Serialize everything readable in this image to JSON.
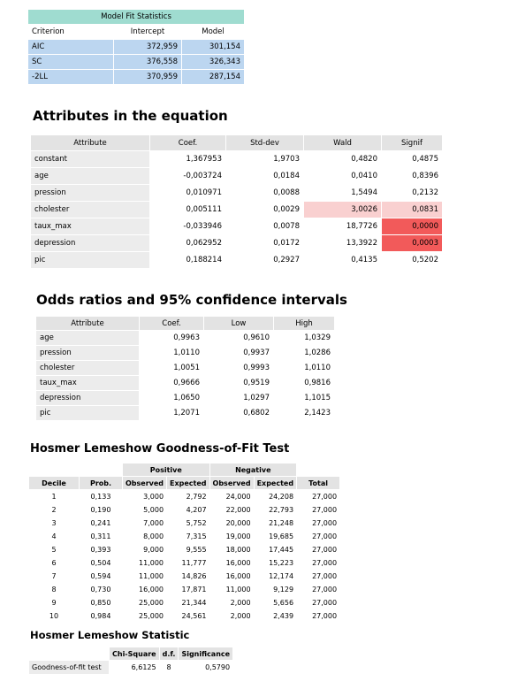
{
  "model_fit": {
    "title": "Model Fit Statistics",
    "headers": [
      "Criterion",
      "Intercept",
      "Model"
    ],
    "rows": [
      [
        "AIC",
        "372,959",
        "301,154"
      ],
      [
        "SC",
        "376,558",
        "326,343"
      ],
      [
        "-2LL",
        "370,959",
        "287,154"
      ]
    ]
  },
  "attributes": {
    "heading": "Attributes in the equation",
    "headers": [
      "Attribute",
      "Coef.",
      "Std-dev",
      "Wald",
      "Signif"
    ],
    "rows": [
      [
        "constant",
        "1,367953",
        "1,9703",
        "0,4820",
        "0,4875"
      ],
      [
        "age",
        "-0,003724",
        "0,0184",
        "0,0410",
        "0,8396"
      ],
      [
        "pression",
        "0,010971",
        "0,0088",
        "1,5494",
        "0,2132"
      ],
      [
        "cholester",
        "0,005111",
        "0,0029",
        "3,0026",
        "0,0831"
      ],
      [
        "taux_max",
        "-0,033946",
        "0,0078",
        "18,7726",
        "0,0000"
      ],
      [
        "depression",
        "0,062952",
        "0,0172",
        "13,3922",
        "0,0003"
      ],
      [
        "pic",
        "0,188214",
        "0,2927",
        "0,4135",
        "0,5202"
      ]
    ],
    "highlight_colors": {
      "light": "#f9d0d0",
      "strong": "#f25a5a"
    }
  },
  "odds": {
    "heading": "Odds ratios and 95% confidence intervals",
    "headers": [
      "Attribute",
      "Coef.",
      "Low",
      "High"
    ],
    "rows": [
      [
        "age",
        "0,9963",
        "0,9610",
        "1,0329"
      ],
      [
        "pression",
        "1,0110",
        "0,9937",
        "1,0286"
      ],
      [
        "cholester",
        "1,0051",
        "0,9993",
        "1,0110"
      ],
      [
        "taux_max",
        "0,9666",
        "0,9519",
        "0,9816"
      ],
      [
        "depression",
        "1,0650",
        "1,0297",
        "1,1015"
      ],
      [
        "pic",
        "1,2071",
        "0,6802",
        "2,1423"
      ]
    ]
  },
  "hosmer": {
    "heading": "Hosmer Lemeshow Goodness-of-Fit Test",
    "group_headers": [
      "Positive",
      "Negative"
    ],
    "headers": [
      "Decile",
      "Prob.",
      "Observed",
      "Expected",
      "Observed",
      "Expected",
      "Total"
    ],
    "rows": [
      [
        "1",
        "0,133",
        "3,000",
        "2,792",
        "24,000",
        "24,208",
        "27,000"
      ],
      [
        "2",
        "0,190",
        "5,000",
        "4,207",
        "22,000",
        "22,793",
        "27,000"
      ],
      [
        "3",
        "0,241",
        "7,000",
        "5,752",
        "20,000",
        "21,248",
        "27,000"
      ],
      [
        "4",
        "0,311",
        "8,000",
        "7,315",
        "19,000",
        "19,685",
        "27,000"
      ],
      [
        "5",
        "0,393",
        "9,000",
        "9,555",
        "18,000",
        "17,445",
        "27,000"
      ],
      [
        "6",
        "0,504",
        "11,000",
        "11,777",
        "16,000",
        "15,223",
        "27,000"
      ],
      [
        "7",
        "0,594",
        "11,000",
        "14,826",
        "16,000",
        "12,174",
        "27,000"
      ],
      [
        "8",
        "0,730",
        "16,000",
        "17,871",
        "11,000",
        "9,129",
        "27,000"
      ],
      [
        "9",
        "0,850",
        "25,000",
        "21,344",
        "2,000",
        "5,656",
        "27,000"
      ],
      [
        "10",
        "0,984",
        "25,000",
        "24,561",
        "2,000",
        "2,439",
        "27,000"
      ]
    ]
  },
  "hosmer_stat": {
    "heading": "Hosmer Lemeshow Statistic",
    "headers": [
      "Chi-Square",
      "d.f.",
      "Significance"
    ],
    "row": [
      "Goodness-of-fit test",
      "6,6125",
      "8",
      "0,5790"
    ]
  }
}
